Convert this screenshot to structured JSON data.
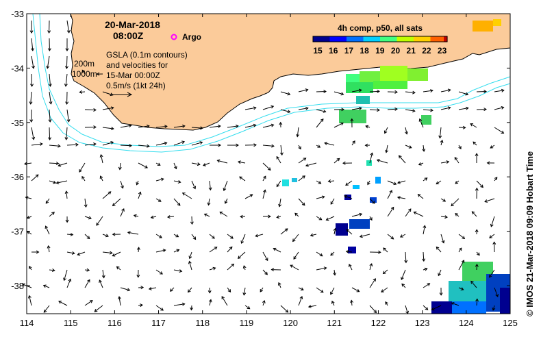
{
  "header": {
    "date": "20-Mar-2018",
    "time": "08:00Z",
    "argo_label": "Argo"
  },
  "annotation": {
    "lines": [
      "GSLA (0.1m contours)",
      "and velocities for",
      "15-Mar 00:00Z",
      "0.5m/s (1kt 24h)"
    ],
    "isobath_200": "200m",
    "isobath_1000": "1000m"
  },
  "colorbar": {
    "title": "4h comp, p50, all sats",
    "ticks": [
      "15",
      "16",
      "17",
      "18",
      "19",
      "20",
      "21",
      "22",
      "23"
    ]
  },
  "credit": "© IMOS 21-Mar-2018 09:09 Hobart Time",
  "axes": {
    "lon_ticks": [
      "114",
      "115",
      "116",
      "117",
      "118",
      "119",
      "120",
      "121",
      "122",
      "123",
      "124",
      "125"
    ],
    "lat_ticks": [
      "-33",
      "-34",
      "-35",
      "-36",
      "-37",
      "-38"
    ],
    "lon_range": [
      114,
      125
    ],
    "lat_range": [
      -38.5,
      -33
    ]
  },
  "colors": {
    "land": "#fbcb9a",
    "coast": "#000000",
    "isobath": "#33ddee",
    "argo": "#ff00ff",
    "sst_scale": [
      "#00008f",
      "#0000ff",
      "#0070ff",
      "#00d0ff",
      "#40ff80",
      "#c0ff00",
      "#ffd000",
      "#ff6000",
      "#c00000"
    ]
  }
}
